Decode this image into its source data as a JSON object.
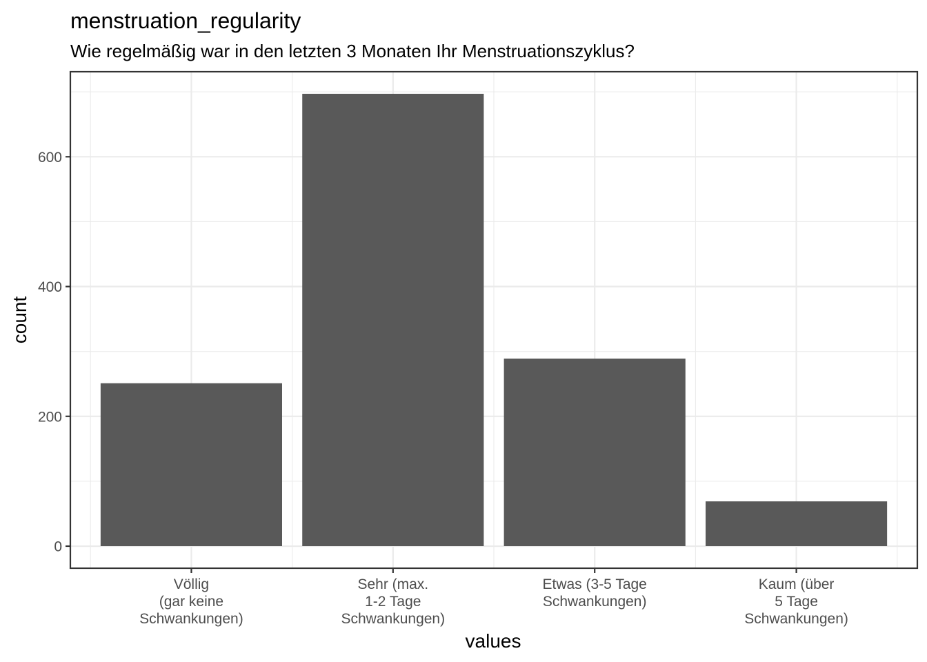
{
  "chart_data": {
    "type": "bar",
    "title": "menstruation_regularity",
    "subtitle": "Wie regelmäßig war in den letzten 3 Monaten Ihr Menstruationszyklus?",
    "xlabel": "values",
    "ylabel": "count",
    "categories": [
      "Völlig\n(gar keine\nSchwankungen)",
      "Sehr (max.\n1-2 Tage\nSchwankungen)",
      "Etwas (3-5 Tage\nSchwankungen)",
      "Kaum (über\n5 Tage\nSchwankungen)"
    ],
    "values": [
      251,
      697,
      289,
      69
    ],
    "ylim": [
      -34,
      731
    ],
    "yticks": [
      0,
      200,
      400,
      600
    ],
    "grid": true,
    "bar_color": "#595959",
    "theme": "bw"
  }
}
